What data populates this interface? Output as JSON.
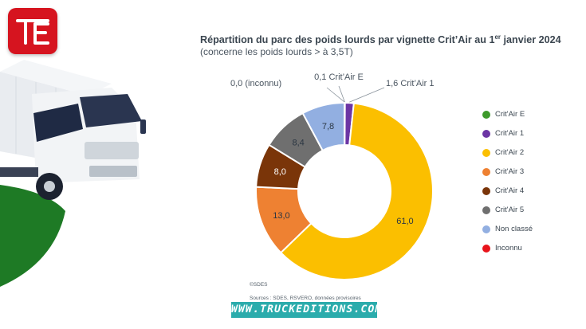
{
  "header": {
    "title_main": "Répartition du parc des poids lourds par vignette Crit’Air au 1",
    "title_sup": "er",
    "title_end": " janvier 2024",
    "subtitle": "(concerne les poids lourds > à 3,5T)"
  },
  "footer": {
    "copyright": "©SDES",
    "sources": "Sources : SDES, RSVERO, données provisoires",
    "watermark": "WWW.TRUCKEDITIONS.COM"
  },
  "colors": {
    "brand_red": "#d6141f",
    "field_green": "#1e7a25"
  },
  "chart_data": {
    "type": "pie",
    "donut": true,
    "legend_position": "right",
    "series": [
      {
        "name": "Crit'Air E",
        "value": 0.1,
        "label": "0,1 Crit’Air E",
        "color": "#3d9a2b"
      },
      {
        "name": "Crit'Air 1",
        "value": 1.6,
        "label": "1,6 Crit’Air 1",
        "color": "#6c35a4"
      },
      {
        "name": "Crit'Air 2",
        "value": 61.0,
        "label": "61,0",
        "color": "#fbbf00"
      },
      {
        "name": "Crit'Air 3",
        "value": 13.0,
        "label": "13,0",
        "color": "#ee8132"
      },
      {
        "name": "Crit'Air 4",
        "value": 8.0,
        "label": "8,0",
        "color": "#7a3509"
      },
      {
        "name": "Crit'Air 5",
        "value": 8.4,
        "label": "8,4",
        "color": "#6f6f6f"
      },
      {
        "name": "Non classé",
        "value": 7.8,
        "label": "7,8",
        "color": "#92afe1"
      },
      {
        "name": "Inconnu",
        "value": 0.0,
        "label": "0,0 (inconnu)",
        "color": "#e8141b"
      }
    ]
  }
}
